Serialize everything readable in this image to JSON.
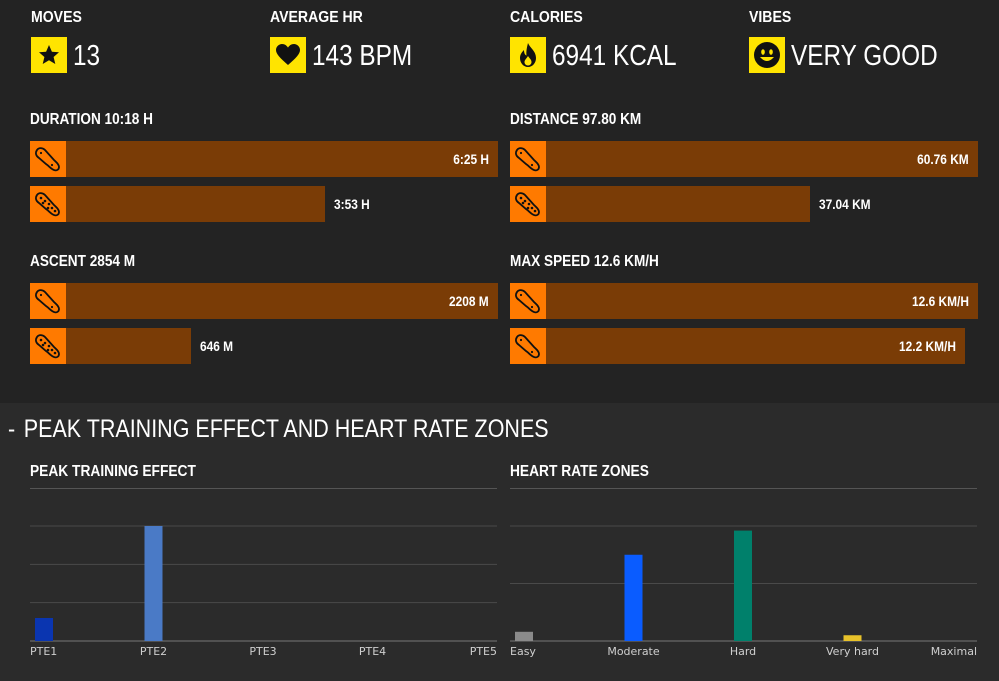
{
  "stats": [
    {
      "label": "MOVES",
      "value": "13",
      "icon": "star-icon"
    },
    {
      "label": "AVERAGE HR",
      "value": "143 BPM",
      "icon": "heart-icon"
    },
    {
      "label": "CALORIES",
      "value": "6941 KCAL",
      "icon": "flame-icon"
    },
    {
      "label": "VIBES",
      "value": "VERY GOOD",
      "icon": "smiley-icon"
    }
  ],
  "bars": [
    {
      "title": "DURATION 10:18 H",
      "rows": [
        {
          "value": "6:25 H",
          "fraction": 1.0,
          "icon": "shoe-icon"
        },
        {
          "value": "3:53 H",
          "fraction": 0.6,
          "icon": "shoe-dotted-icon"
        }
      ]
    },
    {
      "title": "DISTANCE 97.80 KM",
      "rows": [
        {
          "value": "60.76 KM",
          "fraction": 1.0,
          "icon": "shoe-icon"
        },
        {
          "value": "37.04 KM",
          "fraction": 0.61,
          "icon": "shoe-dotted-icon"
        }
      ]
    },
    {
      "title": "ASCENT 2854 M",
      "rows": [
        {
          "value": "2208 M",
          "fraction": 1.0,
          "icon": "shoe-icon"
        },
        {
          "value": "646 M",
          "fraction": 0.29,
          "icon": "shoe-dotted-icon"
        }
      ]
    },
    {
      "title": "MAX SPEED 12.6 KM/H",
      "rows": [
        {
          "value": "12.6 KM/H",
          "fraction": 1.0,
          "icon": "shoe-icon"
        },
        {
          "value": "12.2 KM/H",
          "fraction": 0.97,
          "icon": "shoe-icon"
        }
      ]
    }
  ],
  "section": {
    "toggle": "-",
    "title": "PEAK TRAINING EFFECT AND HEART RATE ZONES"
  },
  "colors": {
    "accent_yellow": "#ffe400",
    "accent_orange": "#ff7a00",
    "bar_fill": "#7a3c06"
  },
  "chart_data": [
    {
      "type": "bar",
      "title": "PEAK TRAINING EFFECT",
      "categories": [
        "PTE1",
        "PTE2",
        "PTE3",
        "PTE4",
        "PTE5"
      ],
      "values": [
        2,
        10,
        0,
        0,
        0
      ],
      "colors": [
        "#0a35b0",
        "#4a7ac6",
        "#4a7ac6",
        "#4a7ac6",
        "#4a7ac6"
      ],
      "ylim": [
        0,
        10
      ],
      "gridlines": 3,
      "grid": true
    },
    {
      "type": "bar",
      "title": "HEART RATE ZONES",
      "categories": [
        "Easy",
        "Moderate",
        "Hard",
        "Very hard",
        "Maximal"
      ],
      "values": [
        0.8,
        7.5,
        9.6,
        0.5,
        0
      ],
      "colors": [
        "#8a8a8a",
        "#0a5cff",
        "#00806b",
        "#e8c22a",
        "#999999"
      ],
      "ylim": [
        0,
        10
      ],
      "gridlines": 2,
      "grid": true
    }
  ]
}
